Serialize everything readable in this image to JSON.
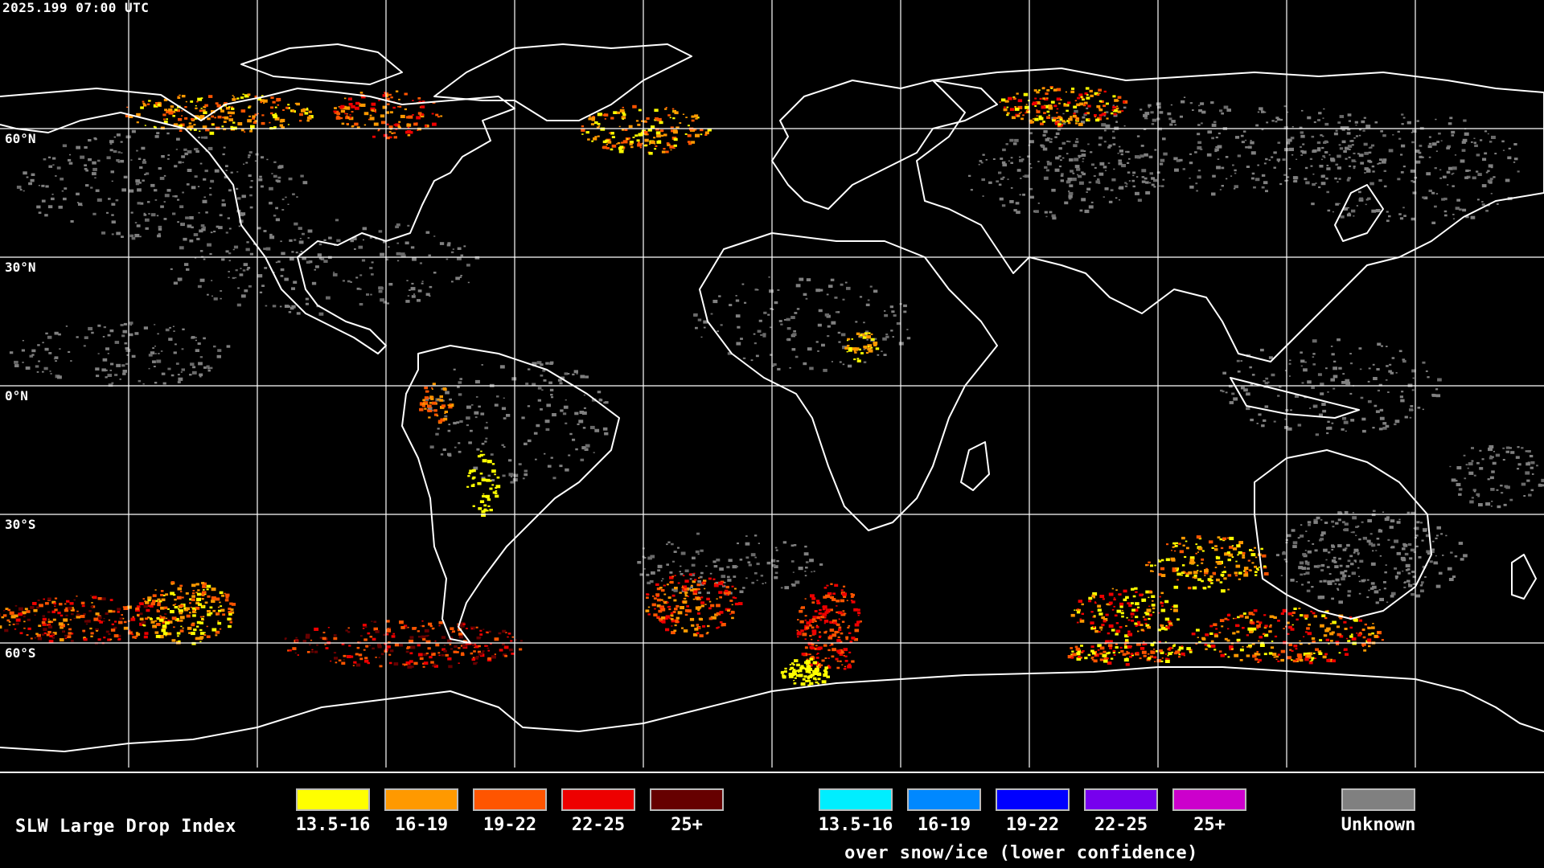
{
  "header": {
    "timestamp": "2025.199 07:00 UTC"
  },
  "latitude_labels": [
    "60°N",
    "30°N",
    "0°N",
    "30°S",
    "60°S"
  ],
  "legend": {
    "title": "SLW Large Drop Index",
    "liquid_bins": [
      {
        "label": "13.5-16",
        "color": "#ffff00"
      },
      {
        "label": "16-19",
        "color": "#ff9900"
      },
      {
        "label": "19-22",
        "color": "#ff5500"
      },
      {
        "label": "22-25",
        "color": "#ee0000"
      },
      {
        "label": "25+",
        "color": "#660000"
      }
    ],
    "snow_bins": [
      {
        "label": "13.5-16",
        "color": "#00eeff"
      },
      {
        "label": "16-19",
        "color": "#0088ff"
      },
      {
        "label": "19-22",
        "color": "#0000ff"
      },
      {
        "label": "22-25",
        "color": "#7700ee"
      },
      {
        "label": "25+",
        "color": "#cc00cc"
      }
    ],
    "snow_caption": "over snow/ice (lower confidence)",
    "unknown": {
      "label": "Unknown",
      "color": "#808080"
    }
  },
  "colors": {
    "background": "#000000",
    "coastline": "#ffffff",
    "grid": "#ffffff"
  }
}
